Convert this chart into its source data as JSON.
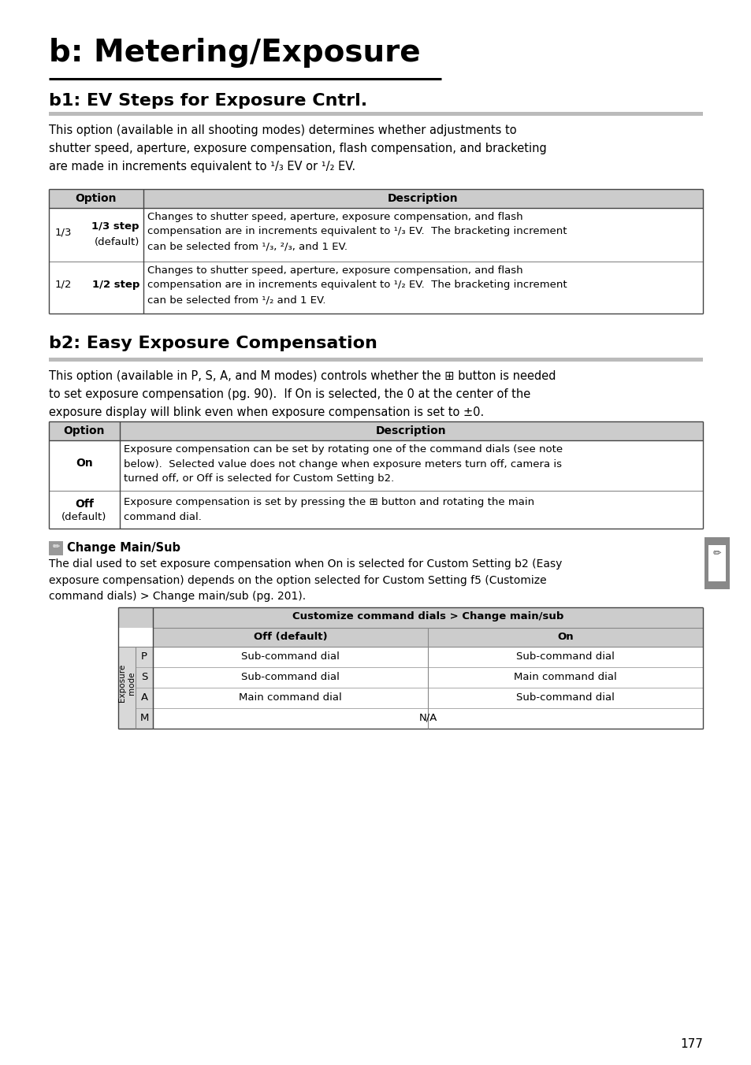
{
  "page_bg": "#ffffff",
  "main_title": "b: Metering/Exposure",
  "section1_title": "b1: EV Steps for Exposure Cntrl.",
  "section2_title": "b2: Easy Exposure Compensation",
  "note_title": "Change Main/Sub",
  "page_number": "177",
  "header_bg": "#cccccc",
  "header_bg2": "#d0d0d0",
  "side_tab_bg": "#888888",
  "note_icon_bg": "#666666",
  "table_line": "#aaaaaa",
  "table_line_dark": "#444444"
}
